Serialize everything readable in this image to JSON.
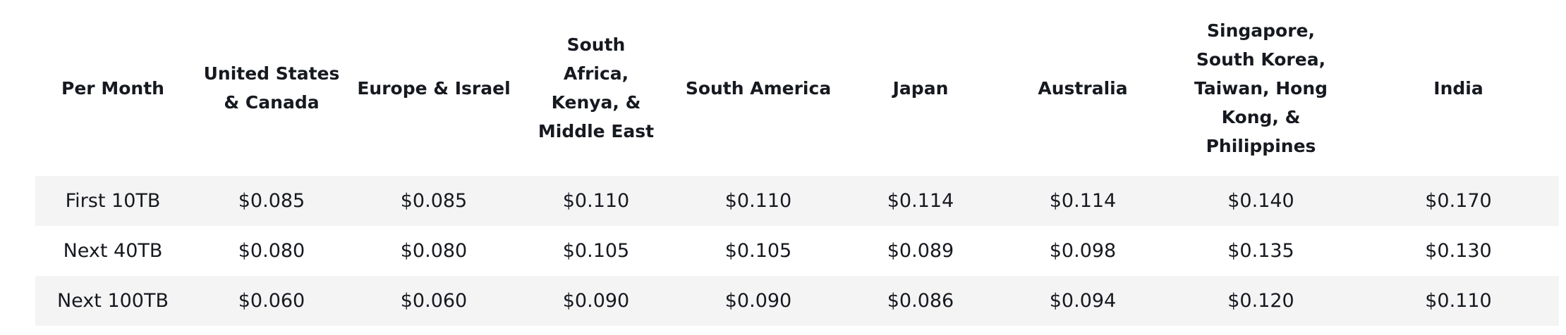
{
  "table": {
    "headers": [
      "Per Month",
      "United States & Canada",
      "Europe & Israel",
      "South Africa, Kenya, & Middle East",
      "South America",
      "Japan",
      "Australia",
      "Singapore, South Korea, Taiwan, Hong Kong, & Philippines",
      "India"
    ],
    "rows": [
      [
        "First 10TB",
        "$0.085",
        "$0.085",
        "$0.110",
        "$0.110",
        "$0.114",
        "$0.114",
        "$0.140",
        "$0.170"
      ],
      [
        "Next 40TB",
        "$0.080",
        "$0.080",
        "$0.105",
        "$0.105",
        "$0.089",
        "$0.098",
        "$0.135",
        "$0.130"
      ],
      [
        "Next 100TB",
        "$0.060",
        "$0.060",
        "$0.090",
        "$0.090",
        "$0.086",
        "$0.094",
        "$0.120",
        "$0.110"
      ]
    ]
  },
  "colors": {
    "row_shade": "#f4f4f4",
    "text": "#16191f"
  }
}
